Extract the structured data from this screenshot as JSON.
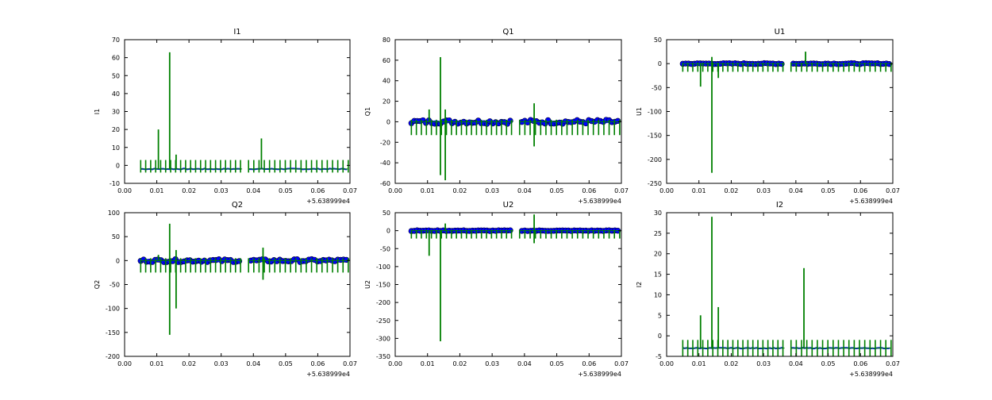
{
  "figure": {
    "background": "#ffffff"
  },
  "colors": {
    "series_a": "#0000ff",
    "series_b": "#008000",
    "axes": "#000000"
  },
  "chart_data": [
    {
      "type": "line",
      "title": "I1",
      "ylabel": "I1",
      "xlim": [
        0,
        0.07
      ],
      "ylim": [
        -10,
        70
      ],
      "xticks": [
        "0.00",
        "0.01",
        "0.02",
        "0.03",
        "0.04",
        "0.05",
        "0.06",
        "0.07"
      ],
      "yticks": [
        "70",
        "60",
        "50",
        "40",
        "30",
        "20",
        "10",
        "0",
        "-10"
      ],
      "x_offset_label": "+5.638999e4",
      "series": [
        {
          "name": "blue",
          "baseline": -2,
          "band": 0.8,
          "markers": false
        },
        {
          "name": "green",
          "baseline": -2,
          "spike_up": 5,
          "spike_down": -2,
          "big_spikes": [
            [
              0.0105,
              20
            ],
            [
              0.014,
              63
            ],
            [
              0.016,
              6
            ],
            [
              0.0425,
              15
            ]
          ]
        }
      ]
    },
    {
      "type": "line",
      "title": "Q1",
      "ylabel": "Q1",
      "xlim": [
        0,
        0.07
      ],
      "ylim": [
        -60,
        80
      ],
      "xticks": [
        "0.00",
        "0.01",
        "0.02",
        "0.03",
        "0.04",
        "0.05",
        "0.06",
        "0.07"
      ],
      "yticks": [
        "80",
        "60",
        "40",
        "20",
        "0",
        "-20",
        "-40",
        "-60"
      ],
      "x_offset_label": "+5.638999e4",
      "series": [
        {
          "name": "blue",
          "baseline": 0,
          "band": 4,
          "markers": true
        },
        {
          "name": "green",
          "baseline": 0,
          "spike_up": 2,
          "spike_down": -13,
          "big_spikes": [
            [
              0.0105,
              12
            ],
            [
              0.014,
              63
            ],
            [
              0.014,
              -52
            ],
            [
              0.0155,
              -57
            ],
            [
              0.0155,
              12
            ],
            [
              0.043,
              18
            ],
            [
              0.043,
              -24
            ]
          ]
        }
      ]
    },
    {
      "type": "line",
      "title": "U1",
      "ylabel": "U1",
      "xlim": [
        0,
        0.07
      ],
      "ylim": [
        -250,
        50
      ],
      "xticks": [
        "0.00",
        "0.01",
        "0.02",
        "0.03",
        "0.04",
        "0.05",
        "0.06",
        "0.07"
      ],
      "yticks": [
        "50",
        "0",
        "-50",
        "-100",
        "-150",
        "-200",
        "-250"
      ],
      "x_offset_label": "+5.638999e4",
      "series": [
        {
          "name": "blue",
          "baseline": 0,
          "band": 2,
          "markers": true
        },
        {
          "name": "green",
          "baseline": 0,
          "spike_up": 2,
          "spike_down": -17,
          "big_spikes": [
            [
              0.0105,
              -48
            ],
            [
              0.014,
              -228
            ],
            [
              0.014,
              14
            ],
            [
              0.016,
              -30
            ],
            [
              0.043,
              25
            ]
          ]
        }
      ]
    },
    {
      "type": "line",
      "title": "Q2",
      "ylabel": "Q2",
      "xlim": [
        0,
        0.07
      ],
      "ylim": [
        -200,
        100
      ],
      "xticks": [
        "0.00",
        "0.01",
        "0.02",
        "0.03",
        "0.04",
        "0.05",
        "0.06",
        "0.07"
      ],
      "yticks": [
        "100",
        "50",
        "0",
        "-50",
        "-100",
        "-150",
        "-200"
      ],
      "x_offset_label": "+5.638999e4",
      "series": [
        {
          "name": "blue",
          "baseline": 0,
          "band": 6,
          "markers": true
        },
        {
          "name": "green",
          "baseline": 0,
          "spike_up": 5,
          "spike_down": -25,
          "big_spikes": [
            [
              0.0105,
              12
            ],
            [
              0.014,
              77
            ],
            [
              0.014,
              -155
            ],
            [
              0.016,
              22
            ],
            [
              0.016,
              -100
            ],
            [
              0.043,
              27
            ],
            [
              0.043,
              -40
            ]
          ]
        }
      ]
    },
    {
      "type": "line",
      "title": "U2",
      "ylabel": "U2",
      "xlim": [
        0,
        0.07
      ],
      "ylim": [
        -350,
        50
      ],
      "xticks": [
        "0.00",
        "0.01",
        "0.02",
        "0.03",
        "0.04",
        "0.05",
        "0.06",
        "0.07"
      ],
      "yticks": [
        "50",
        "0",
        "-50",
        "-100",
        "-150",
        "-200",
        "-250",
        "-300",
        "-350"
      ],
      "x_offset_label": "+5.638999e4",
      "series": [
        {
          "name": "blue",
          "baseline": 0,
          "band": 2,
          "markers": true
        },
        {
          "name": "green",
          "baseline": 0,
          "spike_up": 2,
          "spike_down": -22,
          "big_spikes": [
            [
              0.0105,
              -70
            ],
            [
              0.014,
              -308
            ],
            [
              0.0155,
              20
            ],
            [
              0.043,
              45
            ],
            [
              0.043,
              -35
            ]
          ]
        }
      ]
    },
    {
      "type": "line",
      "title": "I2",
      "ylabel": "I2",
      "xlim": [
        0,
        0.07
      ],
      "ylim": [
        -5,
        30
      ],
      "xticks": [
        "0.00",
        "0.01",
        "0.02",
        "0.03",
        "0.04",
        "0.05",
        "0.06",
        "0.07"
      ],
      "yticks": [
        "30",
        "25",
        "20",
        "15",
        "10",
        "5",
        "0",
        "-5"
      ],
      "x_offset_label": "+5.638999e4",
      "series": [
        {
          "name": "blue",
          "baseline": -3,
          "band": 0.3,
          "markers": false
        },
        {
          "name": "green",
          "baseline": -3,
          "spike_up": 2,
          "spike_down": -3,
          "big_spikes": [
            [
              0.0105,
              5
            ],
            [
              0.014,
              29
            ],
            [
              0.016,
              7
            ],
            [
              0.0425,
              16.5
            ]
          ]
        }
      ]
    }
  ]
}
